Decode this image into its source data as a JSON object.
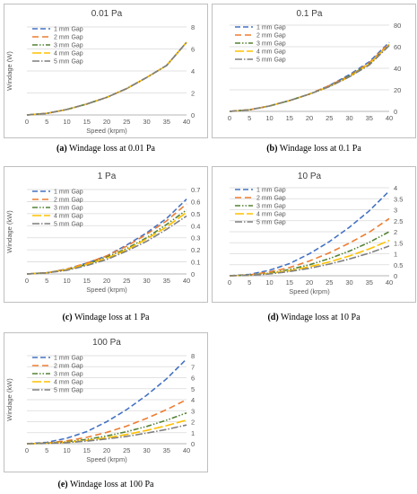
{
  "chart_data": [
    {
      "type": "line",
      "title": "0.01 Pa",
      "xlabel": "Speed (krpm)",
      "ylabel": "Windage (W)",
      "x_ticks": [
        0,
        5,
        10,
        15,
        20,
        25,
        30,
        35,
        40
      ],
      "y_ticks": [
        0,
        2,
        4,
        6,
        8
      ],
      "xlim": [
        0,
        40
      ],
      "ylim": [
        0,
        8
      ],
      "y_axis_side": "right",
      "legend_position": "top-left",
      "x": [
        0,
        5,
        10,
        15,
        20,
        25,
        30,
        35,
        40
      ],
      "series": [
        {
          "name": "1 mm Gap",
          "values": [
            0,
            0.15,
            0.5,
            1.0,
            1.6,
            2.4,
            3.4,
            4.5,
            6.6
          ]
        },
        {
          "name": "2 mm Gap",
          "values": [
            0,
            0.15,
            0.5,
            1.0,
            1.6,
            2.4,
            3.4,
            4.5,
            6.6
          ]
        },
        {
          "name": "3 mm Gap",
          "values": [
            0,
            0.15,
            0.5,
            1.0,
            1.6,
            2.4,
            3.4,
            4.5,
            6.6
          ]
        },
        {
          "name": "4 mm Gap",
          "values": [
            0,
            0.15,
            0.5,
            1.0,
            1.6,
            2.4,
            3.4,
            4.5,
            6.6
          ]
        },
        {
          "name": "5 mm Gap",
          "values": [
            0,
            0.15,
            0.5,
            1.0,
            1.6,
            2.4,
            3.4,
            4.5,
            6.6
          ]
        }
      ],
      "caption_label": "(a)",
      "caption_text": "Windage loss at 0.01 Pa"
    },
    {
      "type": "line",
      "title": "0.1 Pa",
      "xlabel": "",
      "ylabel": "",
      "x_ticks": [
        0,
        5,
        10,
        15,
        20,
        25,
        30,
        35,
        40
      ],
      "y_ticks": [
        0,
        20,
        40,
        60,
        80
      ],
      "xlim": [
        0,
        40
      ],
      "ylim": [
        0,
        80
      ],
      "y_axis_side": "right",
      "legend_position": "top-left",
      "x": [
        0,
        5,
        10,
        15,
        20,
        25,
        30,
        35,
        40
      ],
      "series": [
        {
          "name": "1 mm Gap",
          "values": [
            0,
            1.5,
            5,
            10,
            16,
            24,
            34,
            46,
            64
          ]
        },
        {
          "name": "2 mm Gap",
          "values": [
            0,
            1.5,
            5,
            10,
            16,
            24,
            33,
            45,
            63
          ]
        },
        {
          "name": "3 mm Gap",
          "values": [
            0,
            1.5,
            5,
            10,
            16,
            23,
            33,
            44,
            62
          ]
        },
        {
          "name": "4 mm Gap",
          "values": [
            0,
            1.5,
            5,
            10,
            16,
            23,
            32,
            44,
            62
          ]
        },
        {
          "name": "5 mm Gap",
          "values": [
            0,
            1.5,
            5,
            10,
            16,
            23,
            32,
            43,
            61
          ]
        }
      ],
      "caption_label": "(b)",
      "caption_text": "Windage loss at 0.1 Pa"
    },
    {
      "type": "line",
      "title": "1 Pa",
      "xlabel": "Speed (krpm)",
      "ylabel": "Windage (kW)",
      "x_ticks": [
        0,
        5,
        10,
        15,
        20,
        25,
        30,
        35,
        40
      ],
      "y_ticks": [
        0,
        0.1,
        0.2,
        0.3,
        0.4,
        0.5,
        0.6,
        0.7
      ],
      "xlim": [
        0,
        40
      ],
      "ylim": [
        0,
        0.7
      ],
      "y_axis_side": "right",
      "legend_position": "top-left",
      "x": [
        0,
        5,
        10,
        15,
        20,
        25,
        30,
        35,
        40
      ],
      "series": [
        {
          "name": "1 mm Gap",
          "values": [
            0,
            0.01,
            0.04,
            0.09,
            0.15,
            0.24,
            0.34,
            0.46,
            0.62
          ]
        },
        {
          "name": "2 mm Gap",
          "values": [
            0,
            0.01,
            0.04,
            0.09,
            0.15,
            0.23,
            0.33,
            0.44,
            0.58
          ]
        },
        {
          "name": "3 mm Gap",
          "values": [
            0,
            0.01,
            0.035,
            0.08,
            0.14,
            0.21,
            0.3,
            0.41,
            0.53
          ]
        },
        {
          "name": "4 mm Gap",
          "values": [
            0,
            0.01,
            0.035,
            0.08,
            0.13,
            0.2,
            0.29,
            0.39,
            0.51
          ]
        },
        {
          "name": "5 mm Gap",
          "values": [
            0,
            0.01,
            0.03,
            0.07,
            0.12,
            0.19,
            0.27,
            0.37,
            0.48
          ]
        }
      ],
      "caption_label": "(c)",
      "caption_text": "Windage loss at 1 Pa"
    },
    {
      "type": "line",
      "title": "10 Pa",
      "xlabel": "Speed (krpm)",
      "ylabel": "",
      "x_ticks": [
        0,
        5,
        10,
        15,
        20,
        25,
        30,
        35,
        40
      ],
      "y_ticks": [
        0,
        0.5,
        1,
        1.5,
        2,
        2.5,
        3,
        3.5,
        4
      ],
      "xlim": [
        0,
        40
      ],
      "ylim": [
        0,
        4
      ],
      "y_axis_side": "right",
      "legend_position": "top-left",
      "x": [
        0,
        5,
        10,
        15,
        20,
        25,
        30,
        35,
        40
      ],
      "series": [
        {
          "name": "1 mm Gap",
          "values": [
            0,
            0.06,
            0.25,
            0.55,
            1.0,
            1.55,
            2.2,
            2.95,
            3.85
          ]
        },
        {
          "name": "2 mm Gap",
          "values": [
            0,
            0.04,
            0.17,
            0.37,
            0.67,
            1.04,
            1.48,
            1.98,
            2.6
          ]
        },
        {
          "name": "3 mm Gap",
          "values": [
            0,
            0.03,
            0.12,
            0.28,
            0.5,
            0.78,
            1.12,
            1.52,
            2.0
          ]
        },
        {
          "name": "4 mm Gap",
          "values": [
            0,
            0.025,
            0.1,
            0.23,
            0.41,
            0.63,
            0.9,
            1.22,
            1.6
          ]
        },
        {
          "name": "5 mm Gap",
          "values": [
            0,
            0.02,
            0.08,
            0.19,
            0.34,
            0.53,
            0.76,
            1.03,
            1.35
          ]
        }
      ],
      "caption_label": "(d)",
      "caption_text": "Windage loss at 10 Pa"
    },
    {
      "type": "line",
      "title": "100 Pa",
      "xlabel": "Speed (krpm)",
      "ylabel": "Windage (kW)",
      "x_ticks": [
        0,
        5,
        10,
        15,
        20,
        25,
        30,
        35,
        40
      ],
      "y_ticks": [
        0,
        1,
        2,
        3,
        4,
        5,
        6,
        7,
        8
      ],
      "xlim": [
        0,
        40
      ],
      "ylim": [
        0,
        8
      ],
      "y_axis_side": "right",
      "legend_position": "top-left",
      "x": [
        0,
        5,
        10,
        15,
        20,
        25,
        30,
        35,
        40
      ],
      "series": [
        {
          "name": "1 mm Gap",
          "values": [
            0,
            0.12,
            0.5,
            1.1,
            2.0,
            3.1,
            4.4,
            5.9,
            7.7
          ]
        },
        {
          "name": "2 mm Gap",
          "values": [
            0,
            0.06,
            0.26,
            0.58,
            1.03,
            1.6,
            2.3,
            3.1,
            4.0
          ]
        },
        {
          "name": "3 mm Gap",
          "values": [
            0,
            0.04,
            0.17,
            0.39,
            0.7,
            1.09,
            1.57,
            2.14,
            2.8
          ]
        },
        {
          "name": "4 mm Gap",
          "values": [
            0,
            0.03,
            0.13,
            0.3,
            0.54,
            0.84,
            1.21,
            1.64,
            2.15
          ]
        },
        {
          "name": "5 mm Gap",
          "values": [
            0,
            0.025,
            0.1,
            0.24,
            0.43,
            0.67,
            0.96,
            1.3,
            1.7
          ]
        }
      ],
      "caption_label": "(e)",
      "caption_text": "Windage loss at 100 Pa"
    }
  ],
  "series_styles": [
    {
      "color": "#4472C4",
      "dash": "6,3"
    },
    {
      "color": "#ED7D31",
      "dash": "7,4"
    },
    {
      "color": "#548235",
      "dash": "6,2,1.5,2,1.5,2"
    },
    {
      "color": "#FFC000",
      "dash": "10,3"
    },
    {
      "color": "#7F7F7F",
      "dash": "8,2,1.5,2"
    }
  ],
  "axis_color": "#595959",
  "grid_color": "#D9D9D9"
}
